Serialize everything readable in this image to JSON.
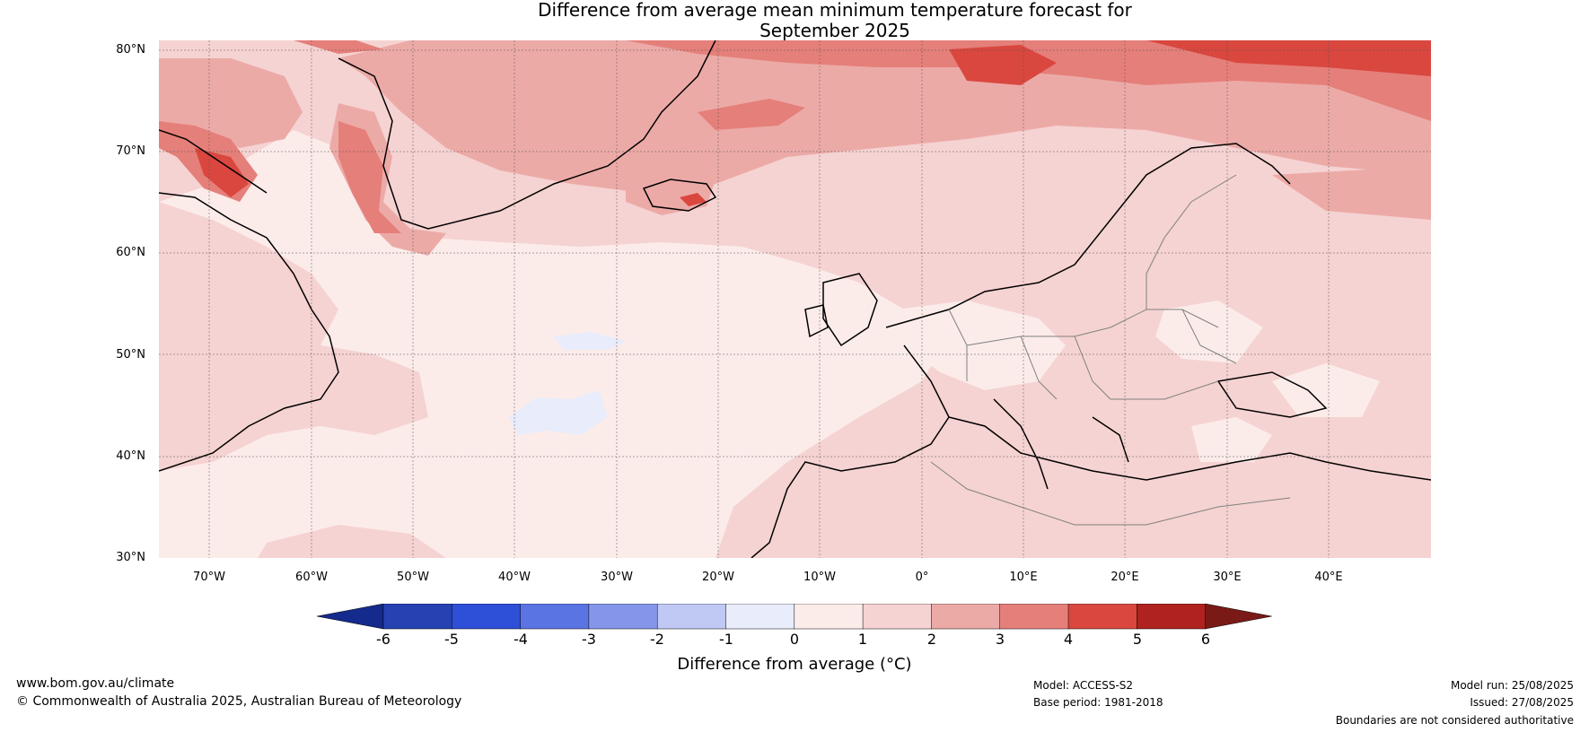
{
  "title_line1": "Difference from average mean minimum temperature forecast for",
  "title_line2": "September 2025",
  "map": {
    "lat_labels": [
      "80°N",
      "70°N",
      "60°N",
      "50°N",
      "40°N",
      "30°N"
    ],
    "lon_labels": [
      "70°W",
      "60°W",
      "50°W",
      "40°W",
      "30°W",
      "20°W",
      "10°W",
      "0°",
      "10°E",
      "20°E",
      "30°E",
      "40°E"
    ],
    "extent": {
      "lon_min": -75,
      "lon_max": 50,
      "lat_min": 30,
      "lat_max": 81
    },
    "gridlines": true
  },
  "colorbar": {
    "ticks": [
      "-6",
      "-5",
      "-4",
      "-3",
      "-2",
      "-1",
      "0",
      "1",
      "2",
      "3",
      "4",
      "5",
      "6"
    ],
    "colors": [
      "#142a8c",
      "#2541b2",
      "#2e4fd8",
      "#5a74e4",
      "#8596ea",
      "#c0c9f4",
      "#e8ecfb",
      "#fbecea",
      "#f5d3d2",
      "#ecaaa7",
      "#e57f7a",
      "#d9473f",
      "#b0221f",
      "#7a1a16"
    ],
    "label": "Difference from average (°C)"
  },
  "footer": {
    "website": "www.bom.gov.au/climate",
    "copyright": "© Commonwealth of Australia 2025, Australian Bureau of Meteorology",
    "model": "Model: ACCESS-S2",
    "base_period": "Base period: 1981-2018",
    "model_run": "Model run: 25/08/2025",
    "issued": "Issued: 27/08/2025",
    "disclaimer": "Boundaries are not considered authoritative"
  }
}
